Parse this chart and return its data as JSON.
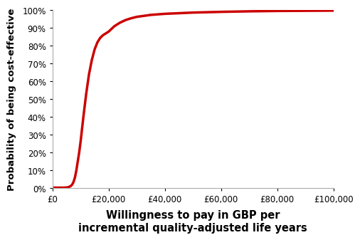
{
  "line_color": "#cc0000",
  "line_width": 2.5,
  "xlabel": "Willingness to pay in GBP per\nincremental quality-adjusted life years",
  "ylabel": "Probability of being cost-effective",
  "xlabel_fontsize": 10.5,
  "ylabel_fontsize": 9.5,
  "tick_fontsize": 8.5,
  "xlim": [
    0,
    100000
  ],
  "ylim": [
    0,
    1.0
  ],
  "xticks": [
    0,
    20000,
    40000,
    60000,
    80000,
    100000
  ],
  "xtick_labels": [
    "£0",
    "£20,000",
    "£40,000",
    "£60,000",
    "£80,000",
    "£100,000"
  ],
  "yticks": [
    0,
    0.1,
    0.2,
    0.3,
    0.4,
    0.5,
    0.6,
    0.7,
    0.8,
    0.9,
    1.0
  ],
  "ytick_labels": [
    "0%",
    "10%",
    "20%",
    "30%",
    "40%",
    "50%",
    "60%",
    "70%",
    "80%",
    "90%",
    "100%"
  ],
  "curve_x": [
    0,
    1000,
    2000,
    3000,
    4000,
    5000,
    5500,
    6000,
    6500,
    7000,
    7500,
    8000,
    8500,
    9000,
    9500,
    10000,
    10500,
    11000,
    12000,
    13000,
    14000,
    15000,
    16000,
    17000,
    18000,
    19000,
    20000,
    22000,
    24000,
    26000,
    28000,
    30000,
    35000,
    40000,
    50000,
    60000,
    70000,
    80000,
    90000,
    100000
  ],
  "curve_y": [
    0.003,
    0.003,
    0.003,
    0.003,
    0.003,
    0.004,
    0.005,
    0.008,
    0.012,
    0.02,
    0.035,
    0.06,
    0.1,
    0.15,
    0.2,
    0.26,
    0.33,
    0.4,
    0.53,
    0.64,
    0.72,
    0.78,
    0.82,
    0.845,
    0.86,
    0.87,
    0.88,
    0.91,
    0.93,
    0.945,
    0.955,
    0.963,
    0.974,
    0.98,
    0.987,
    0.991,
    0.994,
    0.996,
    0.997,
    0.998
  ],
  "background_color": "#ffffff",
  "spine_color": "#aaaaaa",
  "tick_color": "#555555"
}
